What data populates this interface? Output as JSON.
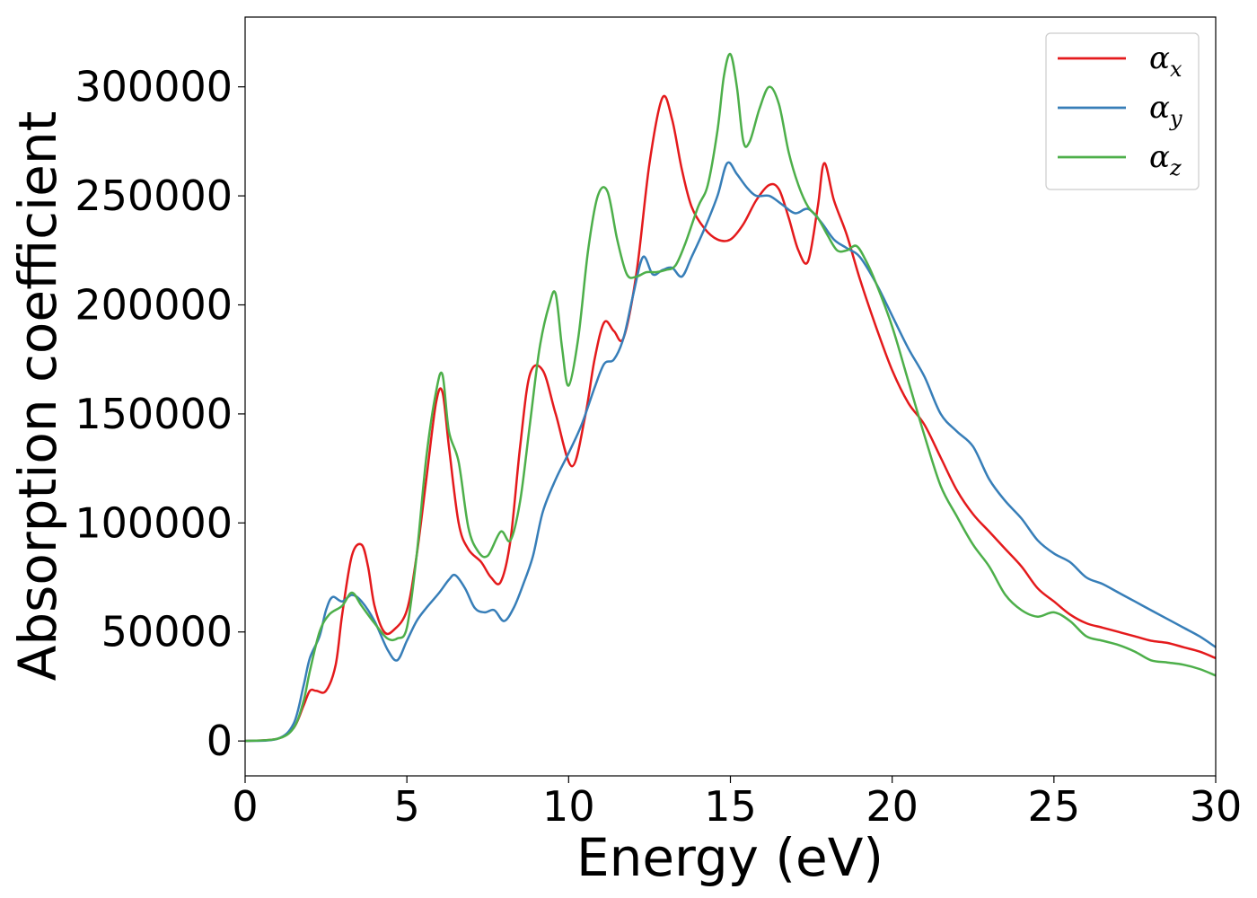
{
  "chart_data": {
    "type": "line",
    "title": "",
    "xlabel": "Energy (eV)",
    "ylabel": "Absorption coefficient",
    "xlim": [
      0,
      30
    ],
    "ylim": [
      -16000,
      332000
    ],
    "xticks": [
      0,
      5,
      10,
      15,
      20,
      25,
      30
    ],
    "yticks": [
      0,
      50000,
      100000,
      150000,
      200000,
      250000,
      300000
    ],
    "grid": false,
    "legend_position": "top-right",
    "series": [
      {
        "name": "α",
        "subscript": "x",
        "color": "#e41a1c",
        "x": [
          0,
          1.0,
          1.5,
          1.8,
          2.0,
          2.2,
          2.5,
          2.8,
          3.0,
          3.3,
          3.6,
          3.8,
          4.0,
          4.3,
          4.6,
          5.0,
          5.3,
          5.6,
          5.9,
          6.1,
          6.3,
          6.6,
          6.9,
          7.3,
          7.6,
          7.9,
          8.2,
          8.5,
          8.8,
          9.2,
          9.6,
          10.1,
          10.5,
          10.8,
          11.1,
          11.4,
          11.7,
          12.1,
          12.5,
          12.9,
          13.2,
          13.5,
          13.8,
          14.2,
          14.6,
          15.0,
          15.4,
          15.8,
          16.2,
          16.5,
          16.8,
          17.1,
          17.4,
          17.7,
          17.9,
          18.2,
          18.6,
          19.0,
          19.5,
          20.0,
          20.5,
          21.0,
          21.5,
          22.0,
          22.5,
          23.0,
          23.5,
          24.0,
          24.5,
          25.0,
          25.5,
          26.0,
          26.5,
          27.0,
          27.5,
          28.0,
          28.5,
          29.0,
          29.5,
          30.0
        ],
        "values": [
          0,
          1000,
          6000,
          16000,
          23000,
          23000,
          23000,
          35000,
          58000,
          85000,
          90000,
          80000,
          62000,
          50000,
          51000,
          60000,
          85000,
          120000,
          155000,
          160000,
          135000,
          100000,
          88000,
          82000,
          75000,
          73000,
          92000,
          135000,
          168000,
          170000,
          150000,
          126000,
          148000,
          175000,
          192000,
          188000,
          185000,
          215000,
          265000,
          295000,
          285000,
          262000,
          245000,
          235000,
          230000,
          230000,
          237000,
          248000,
          255000,
          253000,
          240000,
          225000,
          220000,
          245000,
          265000,
          248000,
          232000,
          212000,
          190000,
          170000,
          155000,
          145000,
          130000,
          115000,
          104000,
          96000,
          88000,
          80000,
          70000,
          64000,
          58000,
          54000,
          52000,
          50000,
          48000,
          46000,
          45000,
          43000,
          41000,
          38000
        ]
      },
      {
        "name": "α",
        "subscript": "y",
        "color": "#377eb8",
        "x": [
          0,
          1.0,
          1.5,
          1.8,
          2.0,
          2.3,
          2.5,
          2.7,
          3.0,
          3.3,
          3.6,
          4.0,
          4.4,
          4.7,
          5.0,
          5.3,
          5.6,
          6.0,
          6.3,
          6.5,
          6.8,
          7.1,
          7.4,
          7.7,
          8.0,
          8.3,
          8.6,
          8.9,
          9.2,
          9.6,
          10.0,
          10.4,
          10.8,
          11.1,
          11.4,
          11.7,
          12.0,
          12.3,
          12.6,
          12.9,
          13.2,
          13.5,
          13.8,
          14.2,
          14.6,
          14.9,
          15.2,
          15.5,
          15.8,
          16.2,
          16.6,
          17.0,
          17.4,
          17.8,
          18.2,
          18.6,
          19.0,
          19.5,
          20.0,
          20.5,
          21.0,
          21.5,
          22.0,
          22.5,
          23.0,
          23.5,
          24.0,
          24.5,
          25.0,
          25.5,
          26.0,
          26.5,
          27.0,
          27.5,
          28.0,
          28.5,
          29.0,
          29.5,
          30.0
        ],
        "values": [
          0,
          1000,
          8000,
          25000,
          38000,
          48000,
          60000,
          66000,
          64000,
          67000,
          64000,
          55000,
          42000,
          37000,
          46000,
          55000,
          61000,
          68000,
          74000,
          76000,
          70000,
          61000,
          59000,
          60000,
          55000,
          61000,
          72000,
          85000,
          105000,
          120000,
          132000,
          145000,
          162000,
          173000,
          175000,
          185000,
          205000,
          222000,
          214000,
          216000,
          217000,
          213000,
          222000,
          235000,
          250000,
          265000,
          260000,
          254000,
          250000,
          250000,
          246000,
          242000,
          244000,
          238000,
          230000,
          226000,
          222000,
          210000,
          195000,
          180000,
          167000,
          150000,
          142000,
          135000,
          120000,
          110000,
          102000,
          92000,
          86000,
          82000,
          75000,
          72000,
          68000,
          64000,
          60000,
          56000,
          52000,
          48000,
          43000
        ]
      },
      {
        "name": "α",
        "subscript": "z",
        "color": "#4daf4a",
        "x": [
          0,
          1.0,
          1.5,
          1.8,
          2.0,
          2.3,
          2.6,
          3.0,
          3.3,
          3.6,
          4.0,
          4.4,
          4.7,
          5.0,
          5.3,
          5.6,
          5.9,
          6.1,
          6.3,
          6.6,
          6.9,
          7.2,
          7.5,
          7.9,
          8.2,
          8.5,
          8.8,
          9.1,
          9.4,
          9.6,
          9.8,
          10.0,
          10.3,
          10.6,
          10.9,
          11.2,
          11.5,
          11.8,
          12.1,
          12.4,
          12.7,
          13.0,
          13.3,
          13.6,
          14.0,
          14.3,
          14.6,
          14.8,
          15.0,
          15.2,
          15.4,
          15.6,
          15.9,
          16.2,
          16.5,
          16.8,
          17.1,
          17.4,
          17.7,
          18.0,
          18.3,
          18.6,
          18.9,
          19.2,
          19.5,
          20.0,
          20.5,
          21.0,
          21.5,
          22.0,
          22.5,
          23.0,
          23.5,
          24.0,
          24.5,
          25.0,
          25.5,
          26.0,
          26.5,
          27.0,
          27.5,
          28.0,
          28.5,
          29.0,
          29.5,
          30.0
        ],
        "values": [
          0,
          1000,
          6000,
          18000,
          32000,
          50000,
          58000,
          62000,
          68000,
          62000,
          54000,
          47000,
          47000,
          52000,
          85000,
          130000,
          160000,
          168000,
          142000,
          128000,
          98000,
          87000,
          85000,
          96000,
          92000,
          110000,
          145000,
          180000,
          200000,
          205000,
          180000,
          163000,
          185000,
          225000,
          250000,
          252000,
          230000,
          214000,
          213000,
          215000,
          215000,
          216000,
          218000,
          228000,
          245000,
          255000,
          280000,
          305000,
          315000,
          300000,
          275000,
          275000,
          290000,
          300000,
          292000,
          270000,
          255000,
          245000,
          240000,
          232000,
          225000,
          225000,
          227000,
          220000,
          210000,
          190000,
          165000,
          140000,
          117000,
          103000,
          90000,
          80000,
          67000,
          60000,
          57000,
          59000,
          55000,
          48000,
          46000,
          44000,
          41000,
          37000,
          36000,
          35000,
          33000,
          30000
        ]
      }
    ]
  }
}
